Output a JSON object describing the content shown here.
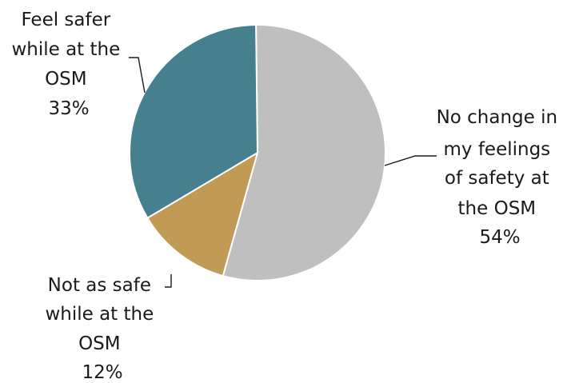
{
  "chart_data": {
    "type": "pie",
    "slices": [
      {
        "label_lines": [
          "No change in",
          "my feelings",
          "of safety at",
          "the OSM"
        ],
        "percent_text": "54%",
        "value": 54,
        "color": "#bfbfbf"
      },
      {
        "label_lines": [
          "Not as safe",
          "while at the",
          "OSM"
        ],
        "percent_text": "12%",
        "value": 12,
        "color": "#c19a56"
      },
      {
        "label_lines": [
          "Feel safer",
          "while at the",
          "OSM"
        ],
        "percent_text": "33%",
        "value": 33,
        "color": "#467f8e"
      }
    ]
  }
}
